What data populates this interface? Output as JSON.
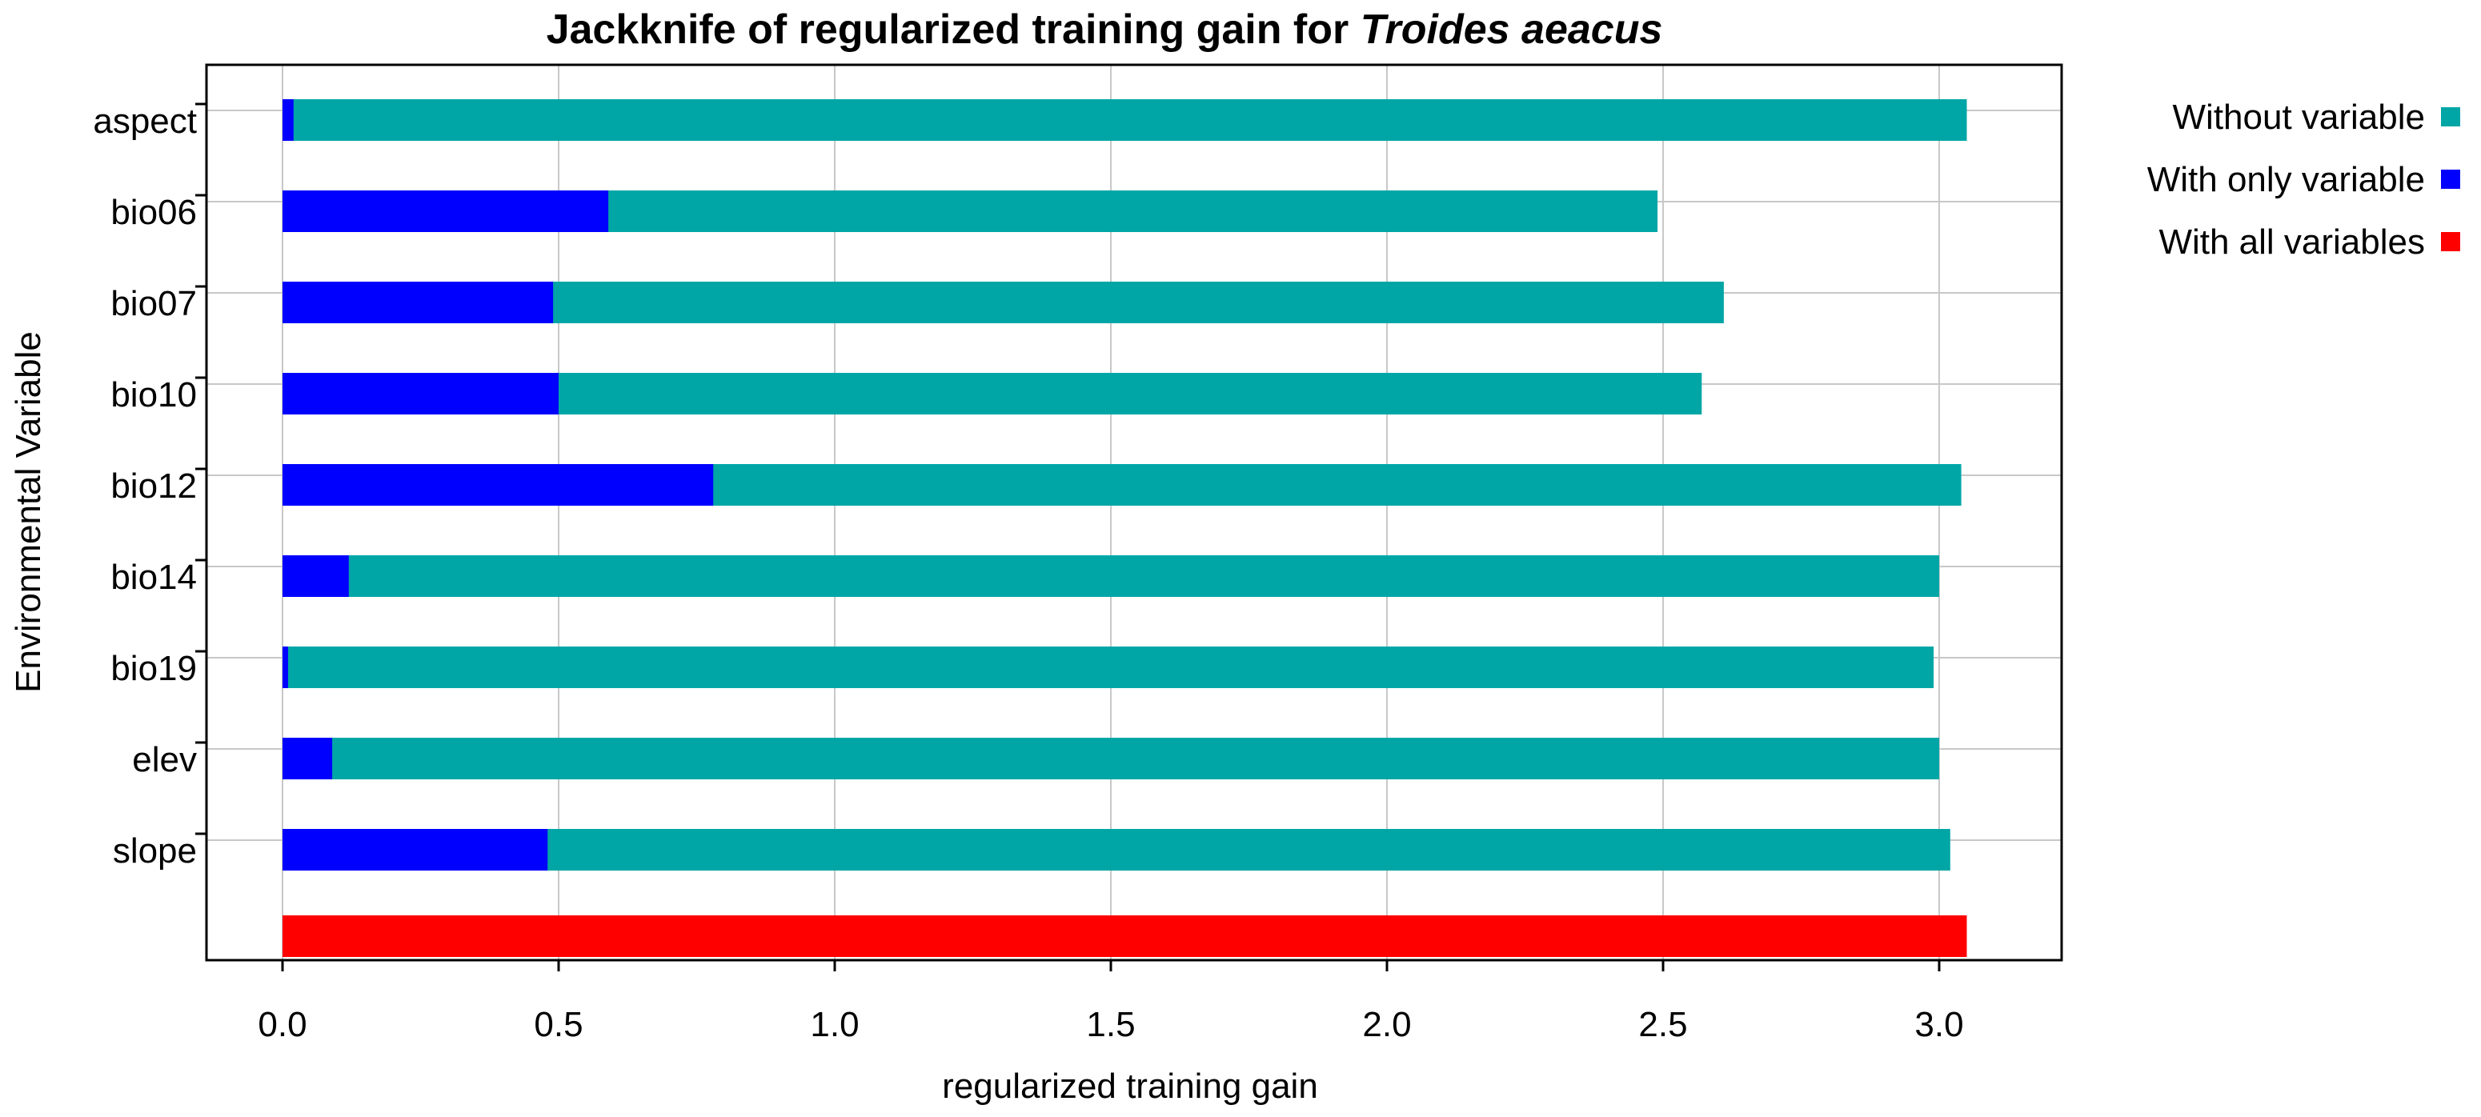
{
  "chart_data": {
    "type": "bar",
    "orientation": "horizontal",
    "title_main": "Jackknife of regularized training gain for ",
    "title_species": "Troides aeacus",
    "xlabel": "regularized training gain",
    "ylabel": "Environmental Variable",
    "xlim": [
      0.0,
      3.2
    ],
    "xticks": [
      "0.0",
      "0.5",
      "1.0",
      "1.5",
      "2.0",
      "2.5",
      "3.0"
    ],
    "grid": true,
    "legend_position": "top-right",
    "categories": [
      "aspect",
      "bio06",
      "bio07",
      "bio10",
      "bio12",
      "bio14",
      "bio19",
      "elev",
      "slope"
    ],
    "series": [
      {
        "name": "Without variable",
        "color": "#00a6a6",
        "values": [
          3.05,
          2.49,
          2.61,
          2.57,
          3.04,
          3.0,
          2.99,
          3.0,
          3.02
        ]
      },
      {
        "name": "With only variable",
        "color": "#0000ff",
        "values": [
          0.02,
          0.59,
          0.49,
          0.5,
          0.78,
          0.12,
          0.01,
          0.09,
          0.48
        ]
      },
      {
        "name": "With all variables",
        "color": "#ff0000",
        "value": 3.05
      }
    ]
  }
}
